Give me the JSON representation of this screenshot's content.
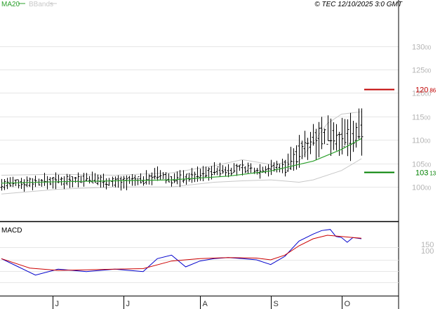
{
  "header": {
    "legend": [
      {
        "label": "MA20",
        "color": "#2ca02c"
      },
      {
        "label": "BBands",
        "color": "#c8c8c8"
      }
    ],
    "source": "© TEC 12/10/2025 3:0 GMT"
  },
  "chart_data": [
    {
      "type": "line",
      "panel": "price",
      "ylim": [
        93.0,
        138.0
      ],
      "yticks": [
        {
          "value": 100,
          "label": "100",
          "sub": "00"
        },
        {
          "value": 105,
          "label": "105",
          "sub": "00"
        },
        {
          "value": 110,
          "label": "110",
          "sub": "00"
        },
        {
          "value": 115,
          "label": "115",
          "sub": "00"
        },
        {
          "value": 120,
          "label": "120",
          "sub": "00"
        },
        {
          "value": 125,
          "label": "125",
          "sub": "00"
        },
        {
          "value": 130,
          "label": "130",
          "sub": "00"
        }
      ],
      "grid": true,
      "markers": [
        {
          "value": 120.86,
          "main": "120",
          "frac": "86",
          "color": "#c00000"
        },
        {
          "value": 103.13,
          "main": "103",
          "frac": "13",
          "color": "#008000"
        }
      ],
      "series": [
        {
          "name": "MA20",
          "color": "#2ca02c",
          "x": [
            0,
            20,
            40,
            60,
            80,
            95,
            110,
            120,
            127
          ],
          "y": [
            100.8,
            101.1,
            101.3,
            101.5,
            102.3,
            103.4,
            105.5,
            108.0,
            110.3
          ]
        },
        {
          "name": "BBands-upper",
          "color": "#c8c8c8",
          "x": [
            0,
            20,
            40,
            60,
            75,
            85,
            95,
            105,
            115,
            120,
            127
          ],
          "y": [
            102.5,
            102.7,
            102.5,
            103.0,
            104.5,
            105.8,
            104.8,
            105.5,
            113.5,
            115.5,
            116.0
          ]
        },
        {
          "name": "BBands-lower",
          "color": "#c8c8c8",
          "x": [
            0,
            20,
            40,
            60,
            75,
            85,
            95,
            105,
            110,
            120,
            127
          ],
          "y": [
            98.5,
            99.5,
            100.0,
            100.0,
            101.0,
            101.3,
            101.5,
            101.0,
            101.5,
            103.5,
            106.0
          ]
        }
      ],
      "ohlc": {
        "anchors_x": [
          0,
          10,
          20,
          30,
          40,
          50,
          55,
          60,
          65,
          70,
          75,
          80,
          85,
          90,
          95,
          100,
          103,
          106,
          108,
          110,
          112,
          114,
          116,
          118,
          120,
          122,
          124,
          126,
          127
        ],
        "anchors_y": [
          100.5,
          101.0,
          101.3,
          101.8,
          101.0,
          101.5,
          102.6,
          101.6,
          102.0,
          102.6,
          103.5,
          103.5,
          104.0,
          103.5,
          104.0,
          104.5,
          106.0,
          108.0,
          109.0,
          110.5,
          111.5,
          110.5,
          112.0,
          111.0,
          109.5,
          111.0,
          110.0,
          111.5,
          112.0
        ],
        "count": 128,
        "ranges": [
          {
            "from": 0,
            "to": 100,
            "amp": 1.6
          },
          {
            "from": 100,
            "to": 110,
            "amp": 3.2
          },
          {
            "from": 110,
            "to": 128,
            "amp": 4.5
          }
        ]
      }
    },
    {
      "type": "line",
      "panel": "macd",
      "title": "MACD",
      "ylim": [
        -280,
        320
      ],
      "yticks": [
        {
          "value": 150,
          "label": "150"
        },
        {
          "value": 100,
          "label": "100"
        }
      ],
      "series": [
        {
          "name": "MACD",
          "color": "#0000cc",
          "x": [
            0,
            6,
            12,
            20,
            30,
            40,
            50,
            55,
            60,
            65,
            70,
            75,
            80,
            85,
            90,
            95,
            100,
            105,
            110,
            113,
            116,
            118,
            120,
            122,
            124,
            127
          ],
          "y": [
            30,
            -40,
            -110,
            -60,
            -80,
            -60,
            -80,
            30,
            60,
            -40,
            10,
            30,
            40,
            30,
            20,
            -20,
            50,
            180,
            240,
            270,
            280,
            220,
            210,
            170,
            210,
            200
          ]
        },
        {
          "name": "Signal",
          "color": "#cc0000",
          "x": [
            0,
            10,
            20,
            30,
            40,
            50,
            60,
            70,
            80,
            90,
            95,
            100,
            105,
            110,
            115,
            120,
            124,
            127
          ],
          "y": [
            30,
            -50,
            -70,
            -65,
            -60,
            -55,
            10,
            30,
            40,
            35,
            20,
            60,
            140,
            200,
            230,
            220,
            210,
            205
          ]
        }
      ]
    },
    {
      "type": "axis",
      "panel": "dates",
      "xlim": [
        0,
        127
      ],
      "labels": [
        {
          "x": 18,
          "label": "J"
        },
        {
          "x": 43,
          "label": "J"
        },
        {
          "x": 70,
          "label": "A"
        },
        {
          "x": 95,
          "label": "S"
        },
        {
          "x": 120,
          "label": "O"
        }
      ]
    }
  ]
}
